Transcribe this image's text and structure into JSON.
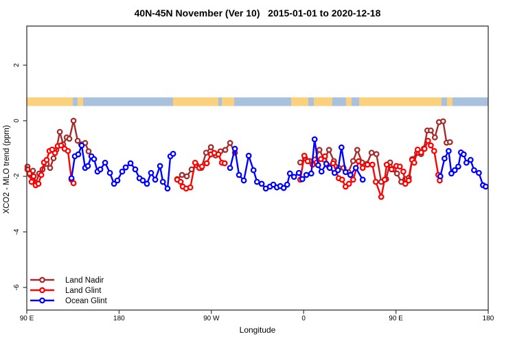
{
  "title": "40N-45N November (Ver 10)   2015-01-01 to 2020-12-18",
  "chart_data": {
    "type": "line",
    "title": "40N-45N November (Ver 10)   2015-01-01 to 2020-12-18",
    "xlabel": "Longitude",
    "ylabel": "XCO2 - MLO trend (ppm)",
    "x_axis": {
      "note": "longitude axis wraps eastward starting at 90E; units are degrees traveled east of 90E",
      "range_deg": [
        0,
        450
      ],
      "ticks_deg": [
        0,
        90,
        180,
        270,
        360,
        450
      ],
      "tick_labels": [
        "90 E",
        "180",
        "90 W",
        "0",
        "90 E",
        "180"
      ]
    },
    "y_axis": {
      "range": [
        -6.8,
        3.4
      ],
      "ticks": [
        2,
        0,
        -2,
        -4,
        -6
      ],
      "tick_labels": [
        "2",
        "0",
        "-2",
        "-4",
        "-6"
      ],
      "grid": false
    },
    "map_band": {
      "description": "40N-45N latitude world-map strip drawn across the plot near +0.7 ppm",
      "ppm_top": 0.84,
      "ppm_bottom": 0.53,
      "ocean_color": "#AAC1DD",
      "land_color": "#FCD17E",
      "land_segments_deg": [
        [
          0,
          44.9
        ],
        [
          49.5,
          54.9
        ],
        [
          142.6,
          202.2
        ],
        [
          257.8,
          404.4
        ],
        [
          409.8,
          415.1
        ]
      ],
      "water_insets_deg": [
        [
          186.8,
          190.2
        ],
        [
          274.5,
          279.9
        ],
        [
          297.9,
          311.3
        ],
        [
          316.7,
          324.1
        ]
      ]
    },
    "legend_position": "bottom-left",
    "series": [
      {
        "id": "land-nadir",
        "name": "Land Nadir",
        "color": "#A52A2A",
        "segments": [
          [
            [
              0.7,
              -1.65
            ],
            [
              3.4,
              -1.95
            ],
            [
              6,
              -1.8
            ],
            [
              8.7,
              -2.25
            ],
            [
              12.1,
              -1.9
            ],
            [
              15.4,
              -1.75
            ],
            [
              19.4,
              -1.55
            ],
            [
              22.8,
              -1.7
            ],
            [
              26.1,
              -1.35
            ],
            [
              28.8,
              -1.05
            ],
            [
              32.2,
              -0.4
            ],
            [
              35.5,
              -0.85
            ],
            [
              38.9,
              -0.6
            ],
            [
              41.5,
              -0.65
            ],
            [
              45.6,
              0
            ],
            [
              49.6,
              -0.72
            ],
            [
              52.9,
              -0.85
            ],
            [
              56.9,
              -0.8
            ],
            [
              60.3,
              -1.1
            ]
          ],
          [
            [
              146.7,
              -2.1
            ],
            [
              151.4,
              -1.95
            ],
            [
              156.1,
              -2
            ],
            [
              160.8,
              -1.75
            ],
            [
              165.5,
              -1.6
            ],
            [
              170.2,
              -1.7
            ],
            [
              174.9,
              -1.15
            ],
            [
              179.6,
              -0.95
            ],
            [
              184.2,
              -1.25
            ],
            [
              188.9,
              -1.1
            ],
            [
              193.6,
              -1.05
            ],
            [
              198.3,
              -0.8
            ],
            [
              203,
              -1.15
            ]
          ],
          [
            [
              266.7,
              -1.5
            ],
            [
              271.4,
              -1.35
            ],
            [
              276,
              -1.45
            ],
            [
              280.7,
              -1.4
            ],
            [
              285.4,
              -1.05
            ],
            [
              290.1,
              -1.4
            ],
            [
              294.8,
              -1.05
            ],
            [
              299.5,
              -1.45
            ],
            [
              304.2,
              -1.7
            ],
            [
              308.9,
              -1.7
            ],
            [
              313.6,
              -1.85
            ],
            [
              318.3,
              -1.45
            ],
            [
              322.3,
              -1.05
            ],
            [
              327,
              -1.5
            ],
            [
              331.7,
              -1.55
            ],
            [
              336.3,
              -1.15
            ],
            [
              341,
              -1.2
            ],
            [
              345.7,
              -2.2
            ],
            [
              350.4,
              -2.1
            ],
            [
              354.4,
              -1.5
            ],
            [
              357.8,
              -1.75
            ],
            [
              361.1,
              -1.9
            ],
            [
              365.2,
              -2.2
            ],
            [
              369.2,
              -2.1
            ],
            [
              372.5,
              -2.05
            ],
            [
              375.9,
              -1.38
            ],
            [
              380.6,
              -1.16
            ],
            [
              384.6,
              -1.2
            ],
            [
              387.3,
              -1
            ],
            [
              390.6,
              -0.35
            ],
            [
              394,
              -0.35
            ],
            [
              398,
              -0.6
            ],
            [
              402,
              -0.05
            ],
            [
              406,
              -0.02
            ],
            [
              409.4,
              -0.79
            ],
            [
              412.7,
              -0.77
            ]
          ]
        ]
      },
      {
        "id": "land-glint",
        "name": "Land Glint",
        "color": "#FF0000",
        "segments": [
          [
            [
              0.7,
              -1.75
            ],
            [
              2.7,
              -1.9
            ],
            [
              4.7,
              -2.2
            ],
            [
              6.7,
              -2
            ],
            [
              8.7,
              -2.32
            ],
            [
              11.4,
              -2.27
            ],
            [
              14.1,
              -1.95
            ],
            [
              16.8,
              -1.5
            ],
            [
              19.4,
              -1.41
            ],
            [
              22.1,
              -1.09
            ],
            [
              24.8,
              -1.04
            ],
            [
              27.5,
              -1.16
            ],
            [
              30.2,
              -0.91
            ],
            [
              33.5,
              -0.89
            ],
            [
              36.9,
              -1.01
            ],
            [
              40.2,
              -1.09
            ],
            [
              43.6,
              -2.12
            ],
            [
              45.6,
              -2.25
            ]
          ],
          [
            [
              146.7,
              -2.12
            ],
            [
              150.1,
              -2.2
            ],
            [
              152.1,
              -2.37
            ],
            [
              155.4,
              -2.44
            ],
            [
              159.5,
              -2.4
            ],
            [
              164.2,
              -1.51
            ],
            [
              168.2,
              -1.7
            ],
            [
              170.9,
              -1.65
            ],
            [
              175.5,
              -1.53
            ],
            [
              179.6,
              -1.21
            ],
            [
              182.9,
              -1.16
            ],
            [
              186.9,
              -1.21
            ],
            [
              190.3,
              -1.51
            ],
            [
              193,
              -1.53
            ]
          ],
          [
            [
              266.7,
              -2.12
            ],
            [
              270.7,
              -1.26
            ],
            [
              274,
              -1.46
            ],
            [
              278.7,
              -1.58
            ],
            [
              282.7,
              -1.5
            ],
            [
              286.8,
              -1.38
            ],
            [
              290.8,
              -1.28
            ],
            [
              294.1,
              -1.63
            ],
            [
              298.8,
              -1.53
            ],
            [
              304.2,
              -2.07
            ],
            [
              307.5,
              -2.12
            ],
            [
              310.9,
              -2.37
            ],
            [
              314.2,
              -2.27
            ],
            [
              318.3,
              -2.12
            ],
            [
              323.6,
              -1.46
            ],
            [
              327.6,
              -1.7
            ],
            [
              332.3,
              -1.58
            ],
            [
              337,
              -1.58
            ],
            [
              340.4,
              -2.2
            ],
            [
              345.7,
              -2.74
            ],
            [
              349,
              -2.12
            ],
            [
              351,
              -1.58
            ],
            [
              355.8,
              -1.75
            ],
            [
              360.5,
              -1.63
            ],
            [
              363.8,
              -1.65
            ],
            [
              367.2,
              -1.83
            ],
            [
              369.2,
              -2.27
            ],
            [
              372.5,
              -2.15
            ],
            [
              375.9,
              -1.41
            ],
            [
              377.9,
              -1.51
            ],
            [
              381.2,
              -1.04
            ],
            [
              384.6,
              -1.14
            ],
            [
              387.9,
              -1.01
            ],
            [
              391.3,
              -0.72
            ],
            [
              394,
              -0.89
            ],
            [
              397.3,
              -1.09
            ],
            [
              401.3,
              -1.95
            ],
            [
              402.7,
              -2.15
            ]
          ]
        ]
      },
      {
        "id": "ocean-glint",
        "name": "Ocean Glint",
        "color": "#0000FF",
        "segments": [
          [
            [
              43.6,
              -2.07
            ],
            [
              46.9,
              -1.28
            ],
            [
              50.2,
              -1.21
            ],
            [
              53.6,
              -0.89
            ],
            [
              56.9,
              -1.7
            ],
            [
              59.6,
              -1.63
            ],
            [
              63,
              -1.28
            ],
            [
              65.6,
              -1.38
            ],
            [
              69,
              -1.83
            ],
            [
              71.7,
              -1.75
            ],
            [
              76.4,
              -1.51
            ],
            [
              81.1,
              -1.88
            ],
            [
              85.1,
              -2.27
            ],
            [
              88.4,
              -2.15
            ],
            [
              93.1,
              -1.83
            ],
            [
              96.5,
              -1.68
            ],
            [
              101.2,
              -1.53
            ],
            [
              105.8,
              -1.75
            ],
            [
              109.9,
              -2.07
            ],
            [
              113.2,
              -2.15
            ],
            [
              117.2,
              -2.27
            ],
            [
              121.2,
              -1.88
            ],
            [
              125.3,
              -2.12
            ],
            [
              130,
              -1.63
            ],
            [
              132.7,
              -2.2
            ],
            [
              137.3,
              -2.44
            ],
            [
              140,
              -1.28
            ],
            [
              142.7,
              -1.19
            ]
          ],
          [
            [
              198.3,
              -1.7
            ],
            [
              203,
              -1.01
            ],
            [
              207,
              -1.95
            ],
            [
              211.7,
              -2.15
            ],
            [
              216.4,
              -1.26
            ],
            [
              221.1,
              -1.78
            ],
            [
              224.5,
              -2.2
            ],
            [
              229.1,
              -2.27
            ],
            [
              233.1,
              -2.44
            ],
            [
              237.2,
              -2.37
            ],
            [
              240.5,
              -2.3
            ],
            [
              243.9,
              -2.4
            ],
            [
              247.2,
              -2.35
            ],
            [
              250.6,
              -2.42
            ],
            [
              253.9,
              -2.3
            ],
            [
              256.6,
              -1.9
            ],
            [
              260.6,
              -2.02
            ],
            [
              265.3,
              -1.88
            ],
            [
              268.7,
              -2.1
            ],
            [
              272.7,
              -1.95
            ],
            [
              277.4,
              -1.9
            ],
            [
              280.7,
              -0.67
            ],
            [
              284.1,
              -1.6
            ],
            [
              287.4,
              -1.83
            ],
            [
              292.1,
              -1.55
            ],
            [
              295.4,
              -1.7
            ],
            [
              300.2,
              -1.88
            ],
            [
              303.5,
              -1.78
            ],
            [
              306.9,
              -0.96
            ],
            [
              310.9,
              -1.85
            ],
            [
              315.6,
              -1.95
            ],
            [
              320.9,
              -1.7
            ],
            [
              327.6,
              -2.12
            ]
          ],
          [
            [
              403.3,
              -2
            ],
            [
              407.4,
              -1.36
            ],
            [
              411.4,
              -1.09
            ],
            [
              414.1,
              -1.9
            ],
            [
              417.4,
              -1.78
            ],
            [
              420.8,
              -1.65
            ],
            [
              423.4,
              -1.14
            ],
            [
              426.1,
              -1.21
            ],
            [
              428.8,
              -1.51
            ],
            [
              432.8,
              -1.41
            ],
            [
              436.2,
              -1.78
            ],
            [
              440.9,
              -1.88
            ],
            [
              444.9,
              -2.32
            ],
            [
              447.6,
              -2.37
            ]
          ]
        ]
      }
    ]
  },
  "style": {
    "box_color": "#333333",
    "marker_fill": "#FFFFFF",
    "background": "#FFFFFF"
  }
}
